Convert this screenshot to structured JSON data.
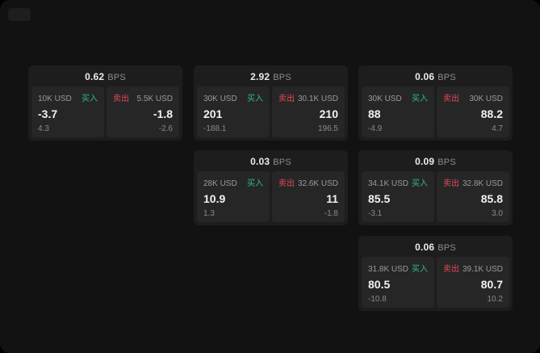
{
  "page": {
    "background": "#000000",
    "surface": "#121212",
    "accent_buy": "#2ebd85",
    "accent_sell": "#e5485a"
  },
  "labels": {
    "bps_unit": "BPS",
    "buy": "买入",
    "sell": "卖出"
  },
  "cards": [
    {
      "bps_value": "0.62",
      "buy": {
        "notional": "10K USD",
        "price": "-3.7",
        "delta": "4.3"
      },
      "sell": {
        "notional": "5.5K USD",
        "price": "-1.8",
        "delta": "-2.6"
      }
    },
    {
      "bps_value": "2.92",
      "buy": {
        "notional": "30K USD",
        "price": "201",
        "delta": "-188.1"
      },
      "sell": {
        "notional": "30.1K USD",
        "price": "210",
        "delta": "196.5"
      }
    },
    {
      "bps_value": "0.06",
      "buy": {
        "notional": "30K USD",
        "price": "88",
        "delta": "-4.9"
      },
      "sell": {
        "notional": "30K USD",
        "price": "88.2",
        "delta": "4.7"
      }
    },
    {
      "bps_value": "0.03",
      "buy": {
        "notional": "28K USD",
        "price": "10.9",
        "delta": "1.3"
      },
      "sell": {
        "notional": "32.6K USD",
        "price": "11",
        "delta": "-1.8"
      }
    },
    {
      "bps_value": "0.09",
      "buy": {
        "notional": "34.1K USD",
        "price": "85.5",
        "delta": "-3.1"
      },
      "sell": {
        "notional": "32.8K USD",
        "price": "85.8",
        "delta": "3.0"
      }
    },
    {
      "bps_value": "0.06",
      "buy": {
        "notional": "31.8K USD",
        "price": "80.5",
        "delta": "-10.8"
      },
      "sell": {
        "notional": "39.1K USD",
        "price": "80.7",
        "delta": "10.2"
      }
    }
  ]
}
